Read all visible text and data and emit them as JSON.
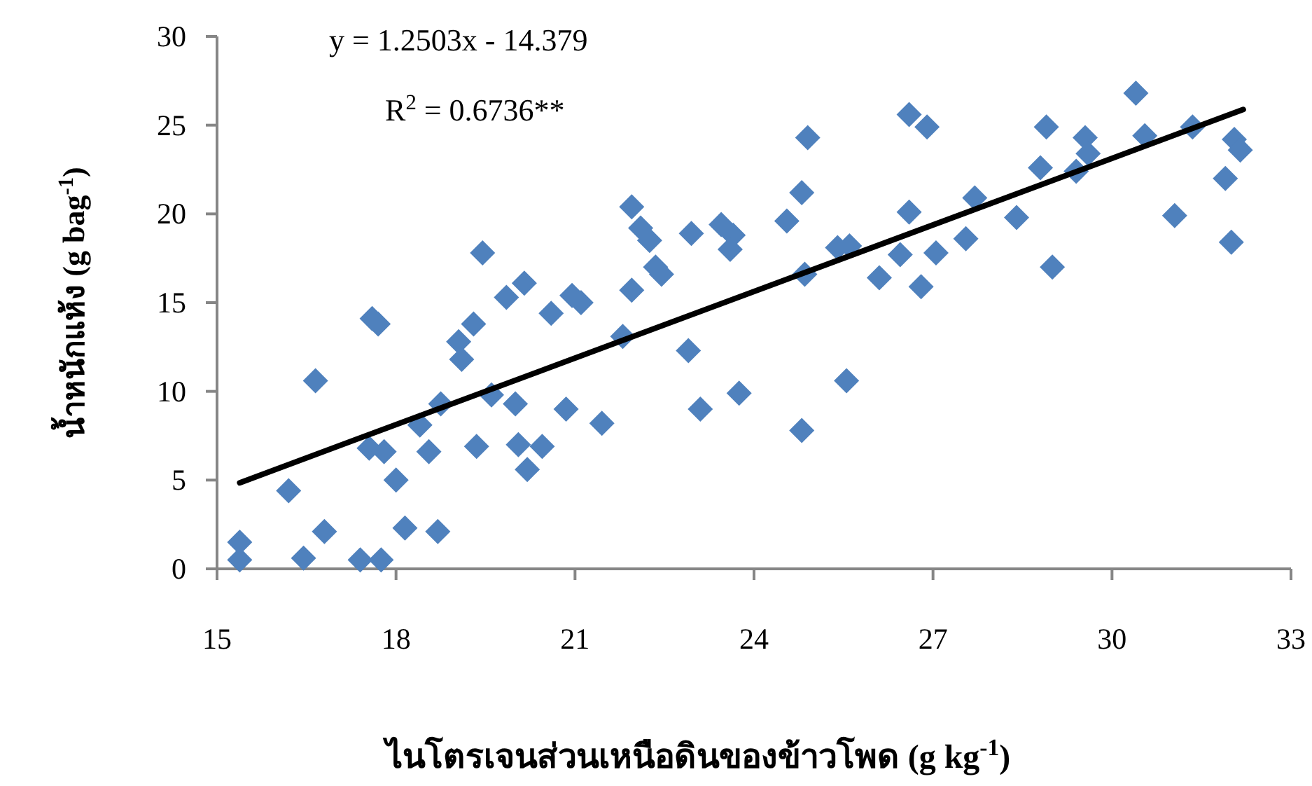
{
  "chart_data": {
    "type": "scatter",
    "xlabel": "ไนโตรเจนส่วนเหนือดินของข้าวโพด (g kg$^{-1}$)",
    "ylabel": "น้ำหนักแห้ง (g bag$^{-1}$)",
    "annotations": [
      "y =  1.2503x - 14.379",
      "R$^{2}$ = 0.6736**"
    ],
    "xlim": [
      15,
      33
    ],
    "xticks": [
      15,
      18,
      21,
      24,
      27,
      30,
      33
    ],
    "ylim": [
      0,
      30
    ],
    "yticks": [
      0,
      5,
      10,
      15,
      20,
      25,
      30
    ],
    "grid": false,
    "series": [
      {
        "marker": "diamond",
        "color": "#4f81bd",
        "x": [
          15.38,
          15.38,
          16.2,
          16.45,
          16.65,
          16.8,
          17.4,
          17.6,
          17.7,
          17.55,
          17.8,
          17.75,
          18.0,
          18.15,
          18.4,
          18.55,
          18.75,
          18.7,
          19.05,
          19.1,
          19.3,
          19.35,
          19.45,
          19.6,
          19.85,
          20.15,
          20.0,
          20.05,
          20.2,
          20.45,
          20.6,
          20.85,
          20.95,
          21.1,
          21.45,
          21.8,
          21.95,
          21.95,
          22.1,
          22.25,
          22.35,
          22.45,
          22.95,
          22.9,
          23.1,
          23.45,
          23.65,
          23.6,
          23.75,
          24.55,
          24.8,
          24.8,
          24.9,
          24.85,
          25.4,
          25.6,
          25.55,
          26.1,
          26.45,
          26.6,
          26.6,
          26.8,
          26.9,
          27.05,
          27.55,
          27.7,
          28.4,
          28.8,
          28.9,
          29.0,
          29.4,
          29.55,
          29.6,
          30.4,
          30.55,
          31.05,
          31.35,
          31.9,
          32.0,
          32.05,
          32.15
        ],
        "values": [
          1.5,
          0.5,
          4.4,
          0.6,
          10.6,
          2.1,
          0.5,
          14.1,
          13.8,
          6.8,
          6.6,
          0.5,
          5.0,
          2.3,
          8.1,
          6.6,
          9.3,
          2.1,
          12.8,
          11.8,
          13.8,
          6.9,
          17.8,
          9.8,
          15.3,
          16.1,
          9.3,
          7.0,
          5.6,
          6.9,
          14.4,
          9.0,
          15.4,
          15.0,
          8.2,
          13.1,
          20.4,
          15.7,
          19.2,
          18.5,
          17.0,
          16.6,
          18.9,
          12.3,
          9.0,
          19.4,
          18.8,
          18.0,
          9.9,
          19.6,
          21.2,
          7.8,
          24.3,
          16.6,
          18.1,
          18.2,
          10.6,
          16.4,
          17.7,
          20.1,
          25.6,
          15.9,
          24.9,
          17.8,
          18.6,
          20.9,
          19.8,
          22.6,
          24.9,
          17.0,
          22.4,
          24.3,
          23.4,
          26.8,
          24.4,
          19.9,
          24.9,
          22.0,
          18.4,
          24.2,
          23.6
        ]
      },
      {
        "type": "line",
        "line_style": "solid",
        "color": "#000000",
        "x": [
          15.38,
          32.2
        ],
        "values": [
          4.85,
          25.88
        ]
      }
    ]
  }
}
